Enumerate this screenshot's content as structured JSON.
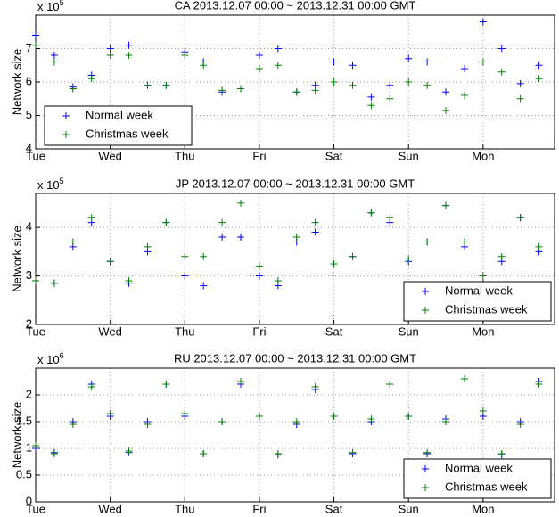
{
  "chart_data": [
    {
      "type": "scatter",
      "title": "CA 2013.12.07 00:00 ~ 2013.12.31 00:00 GMT",
      "y_label": "Network size",
      "y_multiplier": {
        "base": "x 10",
        "exponent": "5"
      },
      "x": [
        0,
        6,
        12,
        18,
        24,
        30,
        36,
        42,
        48,
        54,
        60,
        66,
        72,
        78,
        84,
        90,
        96,
        102,
        108,
        114,
        120,
        126,
        132,
        138,
        144,
        150,
        156,
        162
      ],
      "series": [
        {
          "name": "Normal week",
          "color": "#0000ff",
          "values": [
            7.4,
            6.8,
            5.85,
            6.2,
            7.0,
            7.1,
            5.9,
            5.9,
            6.9,
            6.6,
            5.7,
            5.8,
            6.8,
            7.0,
            5.7,
            5.9,
            6.6,
            6.5,
            5.55,
            5.9,
            6.7,
            6.6,
            5.7,
            6.4,
            7.8,
            7.0,
            5.95,
            6.5
          ]
        },
        {
          "name": "Christmas week",
          "color": "#008000",
          "values": [
            7.1,
            6.6,
            5.8,
            6.1,
            6.8,
            6.8,
            5.9,
            5.9,
            6.8,
            6.5,
            5.75,
            5.8,
            6.4,
            6.5,
            5.7,
            5.75,
            6.0,
            5.9,
            5.3,
            5.5,
            6.0,
            5.9,
            5.15,
            5.6,
            6.6,
            6.3,
            5.5,
            6.1
          ]
        }
      ],
      "xlim": [
        0,
        167
      ],
      "xticks": [
        {
          "value": 0,
          "label": "Tue"
        },
        {
          "value": 24,
          "label": "Wed"
        },
        {
          "value": 48,
          "label": "Thu"
        },
        {
          "value": 72,
          "label": "Fri"
        },
        {
          "value": 96,
          "label": "Sat"
        },
        {
          "value": 120,
          "label": "Sun"
        },
        {
          "value": 144,
          "label": "Mon"
        }
      ],
      "ylim": [
        4,
        8
      ],
      "yticks": [
        4,
        5,
        6,
        7
      ],
      "grid": true,
      "legend": "lower left"
    },
    {
      "type": "scatter",
      "title": "JP 2013.12.07 00:00 ~ 2013.12.31 00:00 GMT",
      "y_label": "Network size",
      "y_multiplier": {
        "base": "x 10",
        "exponent": "5"
      },
      "x": [
        0,
        6,
        12,
        18,
        24,
        30,
        36,
        42,
        48,
        54,
        60,
        66,
        72,
        78,
        84,
        90,
        96,
        102,
        108,
        114,
        120,
        126,
        132,
        138,
        144,
        150,
        156,
        162
      ],
      "series": [
        {
          "name": "Normal week",
          "color": "#0000ff",
          "values": [
            2.9,
            2.85,
            3.6,
            4.1,
            3.3,
            2.85,
            3.5,
            4.1,
            3.0,
            2.8,
            3.8,
            3.8,
            3.0,
            2.8,
            3.7,
            3.9,
            3.25,
            3.4,
            4.3,
            4.1,
            3.3,
            3.7,
            4.45,
            3.6,
            2.85,
            3.3,
            4.2,
            3.5
          ]
        },
        {
          "name": "Christmas week",
          "color": "#008000",
          "values": [
            2.9,
            2.85,
            3.7,
            4.2,
            3.3,
            2.9,
            3.6,
            4.1,
            3.4,
            3.4,
            4.1,
            4.5,
            3.2,
            2.9,
            3.8,
            4.1,
            3.25,
            3.4,
            4.3,
            4.2,
            3.35,
            3.7,
            4.45,
            3.7,
            3.0,
            3.4,
            4.2,
            3.6
          ]
        }
      ],
      "xlim": [
        0,
        167
      ],
      "xticks": [
        {
          "value": 0,
          "label": "Tue"
        },
        {
          "value": 24,
          "label": "Wed"
        },
        {
          "value": 48,
          "label": "Thu"
        },
        {
          "value": 72,
          "label": "Fri"
        },
        {
          "value": 96,
          "label": "Sat"
        },
        {
          "value": 120,
          "label": "Sun"
        },
        {
          "value": 144,
          "label": "Mon"
        }
      ],
      "ylim": [
        2,
        4.7
      ],
      "yticks": [
        2,
        3,
        4
      ],
      "grid": true,
      "legend": "lower right"
    },
    {
      "type": "scatter",
      "title": "RU 2013.12.07 00:00 ~ 2013.12.31 00:00 GMT",
      "y_label": "Network size",
      "y_multiplier": {
        "base": "x 10",
        "exponent": "6"
      },
      "x": [
        0,
        6,
        12,
        18,
        24,
        30,
        36,
        42,
        48,
        54,
        60,
        66,
        72,
        78,
        84,
        90,
        96,
        102,
        108,
        114,
        120,
        126,
        132,
        138,
        144,
        150,
        156,
        162
      ],
      "series": [
        {
          "name": "Normal week",
          "color": "#0000ff",
          "values": [
            1.0,
            0.92,
            1.5,
            2.2,
            1.6,
            0.92,
            1.5,
            2.2,
            1.6,
            0.9,
            1.5,
            2.2,
            1.6,
            0.88,
            1.45,
            2.1,
            1.6,
            0.9,
            1.5,
            2.2,
            1.6,
            0.9,
            1.55,
            2.3,
            1.6,
            0.88,
            1.5,
            2.25
          ]
        },
        {
          "name": "Christmas week",
          "color": "#008000",
          "values": [
            1.05,
            0.9,
            1.45,
            2.15,
            1.65,
            0.95,
            1.45,
            2.2,
            1.65,
            0.9,
            1.5,
            2.25,
            1.6,
            0.9,
            1.5,
            2.15,
            1.6,
            0.92,
            1.55,
            2.2,
            1.6,
            0.92,
            1.5,
            2.3,
            1.7,
            0.9,
            1.45,
            2.2
          ]
        }
      ],
      "xlim": [
        0,
        167
      ],
      "xticks": [
        {
          "value": 0,
          "label": "Tue"
        },
        {
          "value": 24,
          "label": "Wed"
        },
        {
          "value": 48,
          "label": "Thu"
        },
        {
          "value": 72,
          "label": "Fri"
        },
        {
          "value": 96,
          "label": "Sat"
        },
        {
          "value": 120,
          "label": "Sun"
        },
        {
          "value": 144,
          "label": "Mon"
        }
      ],
      "ylim": [
        0,
        2.5
      ],
      "yticks": [
        0,
        0.5,
        1,
        1.5,
        2
      ],
      "grid": true,
      "legend": "lower right"
    }
  ]
}
